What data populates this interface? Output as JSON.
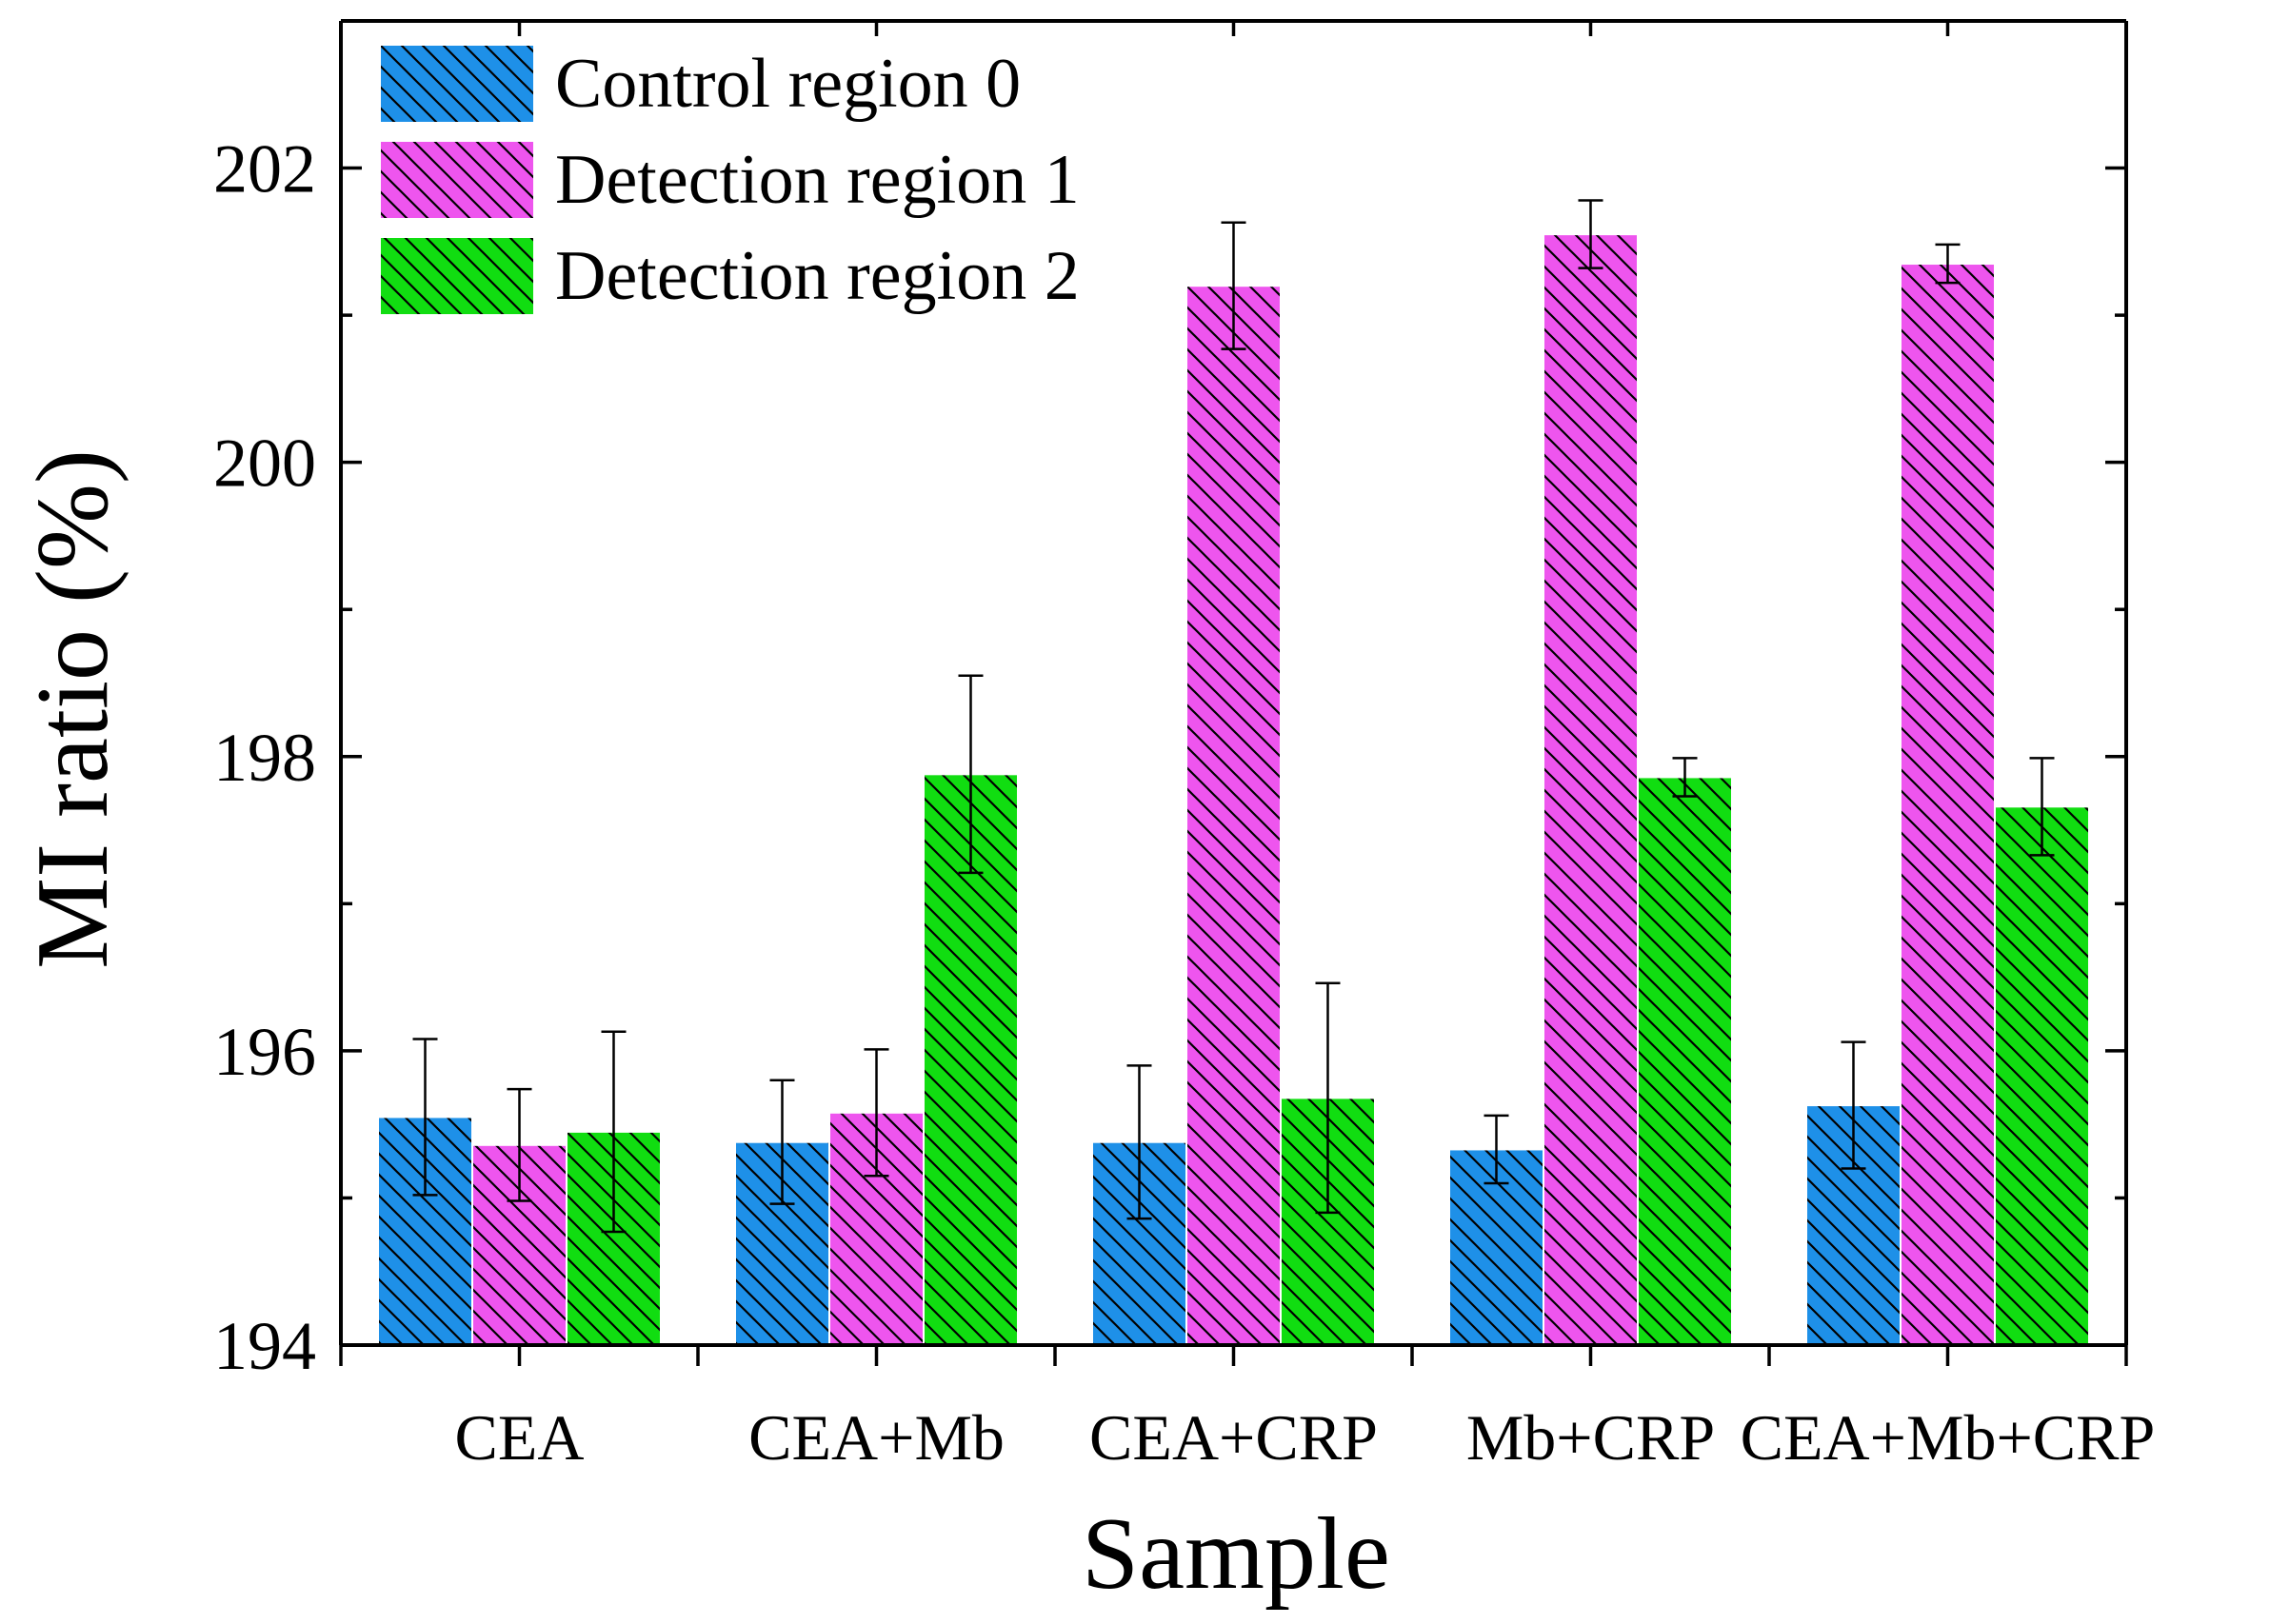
{
  "chart_data": {
    "type": "bar",
    "categories": [
      "CEA",
      "CEA+Mb",
      "CEA+CRP",
      "Mb+CRP",
      "CEA+Mb+CRP"
    ],
    "series": [
      {
        "name": "Control region 0",
        "color": "#1e90e8",
        "values": [
          195.55,
          195.38,
          195.38,
          195.33,
          195.63
        ],
        "errors": [
          0.53,
          0.42,
          0.52,
          0.23,
          0.43
        ]
      },
      {
        "name": "Detection region 1",
        "color": "#ee55ee",
        "values": [
          195.36,
          195.58,
          201.2,
          201.55,
          201.35
        ],
        "errors": [
          0.38,
          0.43,
          0.43,
          0.23,
          0.13
        ]
      },
      {
        "name": "Detection region 2",
        "color": "#11dd11",
        "values": [
          195.45,
          197.88,
          195.68,
          197.86,
          197.66
        ],
        "errors": [
          0.68,
          0.67,
          0.78,
          0.13,
          0.33
        ]
      }
    ],
    "xlabel": "Sample",
    "ylabel": "MI ratio (%)",
    "ylim": [
      194,
      203
    ],
    "yticks": [
      194,
      196,
      198,
      200,
      202
    ],
    "legend_position": "top-left",
    "grid": false
  }
}
